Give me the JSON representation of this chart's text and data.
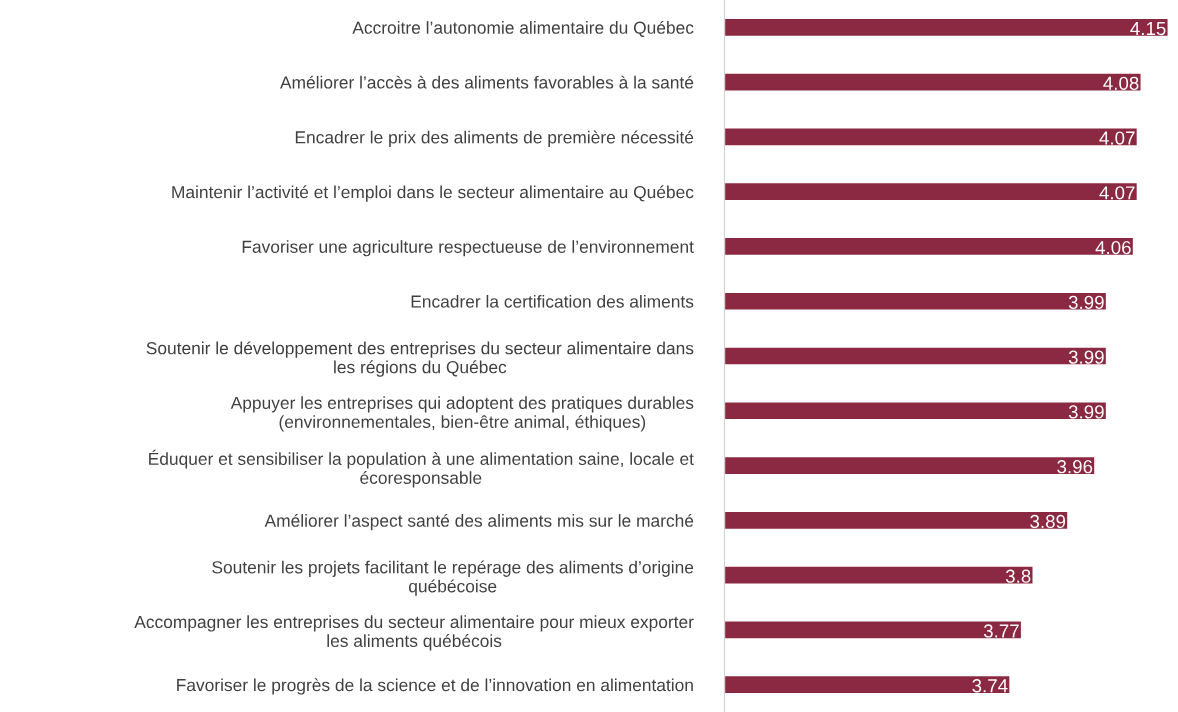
{
  "chart_data": {
    "type": "bar",
    "orientation": "horizontal",
    "categories": [
      "Accroitre l’autonomie alimentaire du Québec",
      "Améliorer l’accès à des aliments favorables à la santé",
      "Encadrer le prix des aliments de première nécessité",
      "Maintenir l’activité et l’emploi dans le secteur alimentaire au Québec",
      "Favoriser une agriculture respectueuse de l’environnement",
      "Encadrer la certification des aliments",
      "Soutenir le développement des entreprises du secteur alimentaire dans\nles régions du Québec",
      "Appuyer les entreprises qui adoptent des pratiques durables\n(environnementales, bien-être animal, éthiques)",
      "Éduquer et sensibiliser la population à une alimentation saine, locale et\nécoresponsable",
      "Améliorer l’aspect santé des aliments mis sur le marché",
      "Soutenir les projets facilitant le repérage des aliments d’origine\nquébécoise",
      "Accompagner les entreprises du secteur alimentaire pour mieux exporter\nles aliments québécois",
      "Favoriser le progrès de la science et de l’innovation en alimentation"
    ],
    "values": [
      4.15,
      4.08,
      4.07,
      4.07,
      4.06,
      3.99,
      3.99,
      3.99,
      3.96,
      3.89,
      3.8,
      3.77,
      3.74
    ],
    "color": "#8b2942",
    "xlim": [
      3,
      4.16
    ],
    "data_labels": true,
    "grid": false,
    "legend": false
  }
}
